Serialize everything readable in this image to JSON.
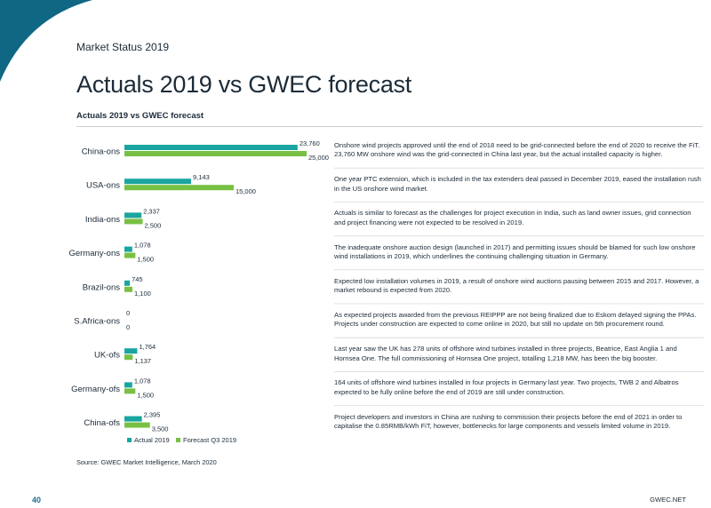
{
  "header": {
    "section": "Market Status 2019",
    "title": "Actuals 2019 vs GWEC forecast"
  },
  "colors": {
    "actual": "#1aa5a1",
    "forecast": "#78c043",
    "corner": "#0f6784",
    "text": "#1c2b39"
  },
  "chart_data": {
    "type": "bar",
    "orientation": "horizontal",
    "title": "Actuals 2019 vs GWEC forecast",
    "categories": [
      "China-ons",
      "USA-ons",
      "India-ons",
      "Germany-ons",
      "Brazil-ons",
      "S.Africa-ons",
      "UK-ofs",
      "Germany-ofs",
      "China-ofs"
    ],
    "series": [
      {
        "name": "Actual 2019",
        "values": [
          23760,
          9143,
          2337,
          1078,
          745,
          0,
          1764,
          1078,
          2395
        ],
        "labels": [
          "23,760",
          "9,143",
          "2,337",
          "1,078",
          "745",
          "0",
          "1,764",
          "1,078",
          "2,395"
        ]
      },
      {
        "name": "Forecast Q3 2019",
        "values": [
          25000,
          15000,
          2500,
          1500,
          1100,
          0,
          1137,
          1500,
          3500
        ],
        "labels": [
          "25,000",
          "15,000",
          "2,500",
          "1,500",
          "1,100",
          "0",
          "1,137",
          "1,500",
          "3,500"
        ]
      }
    ],
    "legend_position": "bottom-left",
    "grid": false
  },
  "notes": [
    "Onshore wind projects approved until the end of 2018 need to be grid-connected before the end of 2020 to receive the FiT. 23,760 MW onshore wind was the grid-connected in China last year, but the actual installed capacity is higher.",
    "One year PTC extension, which is included in the tax extenders deal passed in December 2019, eased the installation rush in the US onshore wind market.",
    "Actuals is similar to forecast as the challenges for project execution in India, such as land owner issues, grid connection and project financing were not expected to be resolved in 2019.",
    "The inadequate onshore auction design (launched in 2017) and permitting issues should be blamed for such low onshore wind installations in 2019, which underlines the continuing challenging situation in Germany.",
    "Expected low installation volumes in 2019, a result of onshore wind auctions pausing between 2015 and 2017. However, a market rebound is expected from 2020.",
    "As expected projects awarded from the previous REIPPP are not being finalized due to Eskom delayed signing the PPAs. Projects under construction are expected to come online in 2020, but still no update on 5th procurement round.",
    "Last year saw the UK has 278 units of offshore wind turbines installed in three projects, Beatrice, East Anglia 1 and Hornsea One. The full commissioning of Hornsea One project, totalling 1,218 MW, has been the big booster.",
    "164 units of offshore wind turbines installed in four projects in Germany last year. Two projects, TWB 2 and Albatros expected to be fully online before the end of 2019 are still under construction.",
    "Project developers and investors in China are rushing to commission their projects before the end of 2021 in order to capitalise the 0.85RMB/kWh FiT, however, bottlenecks for large components and vessels limited volume in 2019."
  ],
  "footer": {
    "source": "Source: GWEC Market Intelligence, March 2020",
    "page_number": "40",
    "site": "GWEC.NET"
  }
}
